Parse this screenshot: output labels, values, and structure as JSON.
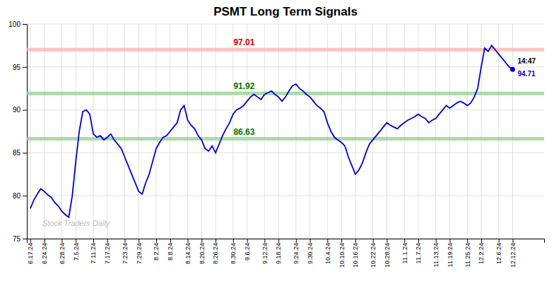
{
  "chart_data": {
    "type": "line",
    "title": "PSMT Long Term Signals",
    "color": "#0000cc",
    "ylim": [
      75,
      100
    ],
    "yticks": [
      75,
      80,
      85,
      90,
      95,
      100
    ],
    "grid": true,
    "watermark": "Stock Traders Daily",
    "end_label": "14:47",
    "reference_lines": [
      {
        "value": 97.01,
        "label": "97.01",
        "color": "#ffaaaa",
        "label_color": "#cc0000"
      },
      {
        "value": 91.92,
        "label": "91.92",
        "color": "#88cc88",
        "label_color": "#007700"
      },
      {
        "value": 86.63,
        "label": "86.63",
        "color": "#88cc88",
        "label_color": "#007700"
      }
    ],
    "categories": [
      "6.17.24",
      null,
      null,
      null,
      "6.24.24",
      null,
      null,
      null,
      null,
      "6.28.24",
      null,
      null,
      null,
      "7.5.24",
      null,
      null,
      null,
      null,
      "7.11.24",
      null,
      null,
      null,
      "7.17.24",
      null,
      null,
      null,
      null,
      "7.23.24",
      null,
      null,
      null,
      "7.29.24",
      null,
      null,
      null,
      null,
      "8.2.24",
      null,
      null,
      null,
      "8.8.24",
      null,
      null,
      null,
      null,
      "8.14.24",
      null,
      null,
      null,
      "8.20.24",
      null,
      null,
      null,
      "8.26.24",
      null,
      null,
      null,
      null,
      "8.30.24",
      null,
      null,
      null,
      "9.6.24",
      null,
      null,
      null,
      null,
      "9.12.24",
      null,
      null,
      null,
      "9.18.24",
      null,
      null,
      null,
      null,
      "9.24.24",
      null,
      null,
      null,
      "9.30.24",
      null,
      null,
      null,
      null,
      "10.4.24",
      null,
      null,
      null,
      "10.10.24",
      null,
      null,
      null,
      "10.16.24",
      null,
      null,
      null,
      null,
      "10.22.24",
      null,
      null,
      null,
      "10.28.24",
      null,
      null,
      null,
      null,
      "11.1.24",
      null,
      null,
      null,
      "11.7.24",
      null,
      null,
      null,
      null,
      "11.13.24",
      null,
      null,
      null,
      "11.19.24",
      null,
      null,
      null,
      null,
      "11.25.24",
      null,
      null,
      null,
      "12.2.24",
      null,
      null,
      null,
      null,
      "12.6.24",
      null,
      null,
      null,
      "12.12.24"
    ],
    "values": [
      78.5,
      79.5,
      80.2,
      80.8,
      80.5,
      80.1,
      79.8,
      79.2,
      78.8,
      78.2,
      77.8,
      77.5,
      80.0,
      84.0,
      87.5,
      89.8,
      90.0,
      89.5,
      87.2,
      86.8,
      87.0,
      86.5,
      86.8,
      87.2,
      86.5,
      86.0,
      85.5,
      84.5,
      83.5,
      82.5,
      81.5,
      80.5,
      80.2,
      81.5,
      82.5,
      84.0,
      85.5,
      86.2,
      86.8,
      87.0,
      87.5,
      88.0,
      88.5,
      90.0,
      90.5,
      88.8,
      88.2,
      87.8,
      87.0,
      86.5,
      85.5,
      85.2,
      85.8,
      85.0,
      86.0,
      87.0,
      87.8,
      88.5,
      89.5,
      90.0,
      90.2,
      90.5,
      91.0,
      91.5,
      91.8,
      91.5,
      91.2,
      91.8,
      92.0,
      92.2,
      91.8,
      91.5,
      91.0,
      91.5,
      92.2,
      92.8,
      93.0,
      92.5,
      92.2,
      91.8,
      91.5,
      91.0,
      90.5,
      90.2,
      89.8,
      88.5,
      87.5,
      86.8,
      86.5,
      86.2,
      85.8,
      84.5,
      83.5,
      82.5,
      83.0,
      83.8,
      85.0,
      86.0,
      86.5,
      87.0,
      87.5,
      88.0,
      88.5,
      88.2,
      88.0,
      87.8,
      88.2,
      88.5,
      88.8,
      89.0,
      89.2,
      89.5,
      89.2,
      89.0,
      88.5,
      88.8,
      89.0,
      89.5,
      90.0,
      90.5,
      90.2,
      90.5,
      90.8,
      91.0,
      90.8,
      90.5,
      90.8,
      91.5,
      92.5,
      95.0,
      97.2,
      96.8,
      97.5,
      97.0,
      96.5,
      96.0,
      95.5,
      95.0,
      94.71
    ]
  }
}
